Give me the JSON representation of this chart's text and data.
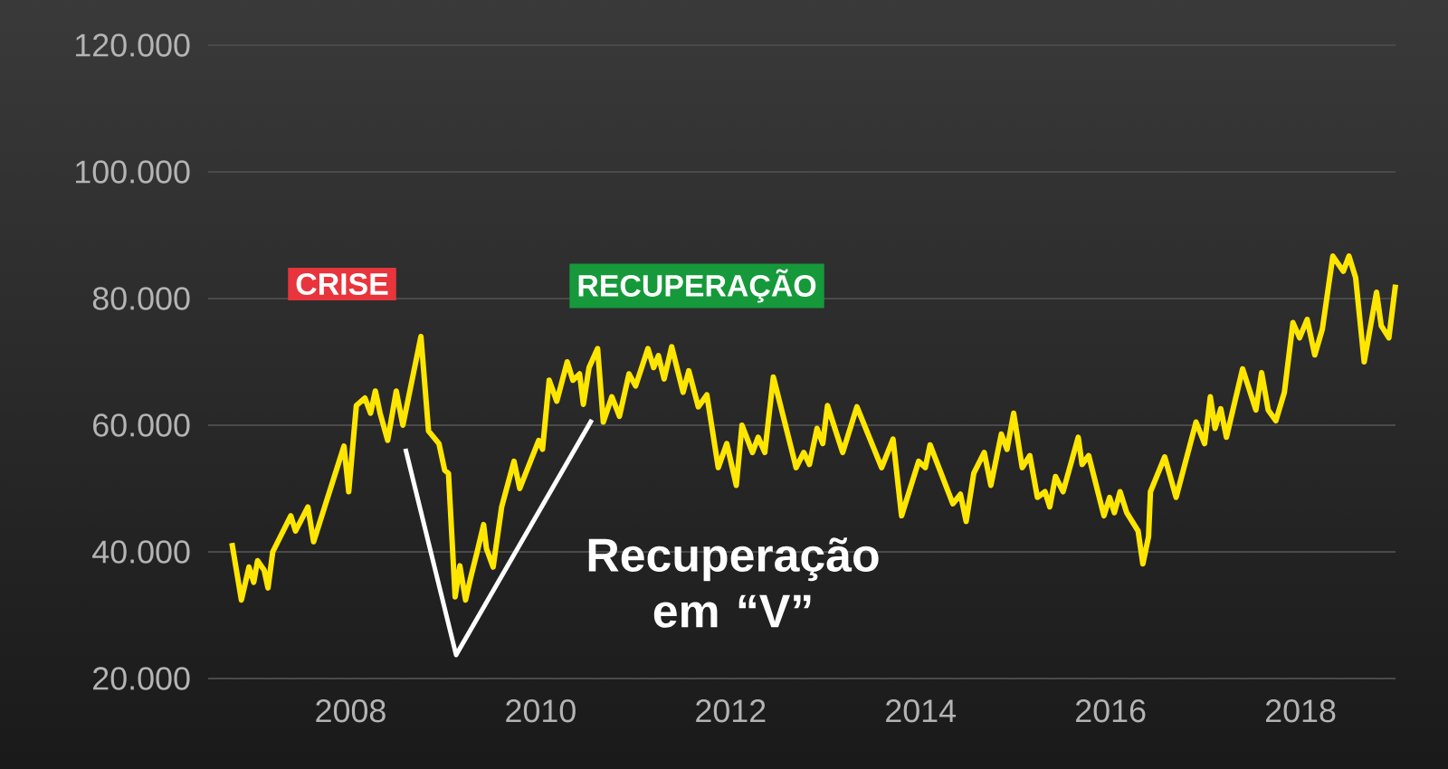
{
  "chart_data": {
    "type": "line",
    "x": [
      2006.75,
      2006.85,
      2006.93,
      2006.98,
      2007.02,
      2007.09,
      2007.13,
      2007.18,
      2007.37,
      2007.42,
      2007.55,
      2007.61,
      2007.93,
      2007.98,
      2008.06,
      2008.15,
      2008.21,
      2008.26,
      2008.31,
      2008.39,
      2008.48,
      2008.55,
      2008.74,
      2008.82,
      2008.93,
      2008.99,
      2009.03,
      2009.1,
      2009.15,
      2009.21,
      2009.26,
      2009.34,
      2009.4,
      2009.43,
      2009.5,
      2009.59,
      2009.72,
      2009.78,
      2009.98,
      2010.02,
      2010.09,
      2010.17,
      2010.28,
      2010.34,
      2010.41,
      2010.45,
      2010.51,
      2010.6,
      2010.66,
      2010.75,
      2010.83,
      2010.93,
      2011.0,
      2011.13,
      2011.19,
      2011.24,
      2011.3,
      2011.38,
      2011.5,
      2011.56,
      2011.66,
      2011.75,
      2011.87,
      2011.96,
      2012.06,
      2012.12,
      2012.23,
      2012.29,
      2012.36,
      2012.45,
      2012.69,
      2012.77,
      2012.83,
      2012.91,
      2012.97,
      2013.02,
      2013.18,
      2013.33,
      2013.59,
      2013.71,
      2013.8,
      2013.98,
      2014.05,
      2014.1,
      2014.34,
      2014.42,
      2014.48,
      2014.56,
      2014.67,
      2014.74,
      2014.85,
      2014.91,
      2014.98,
      2015.07,
      2015.15,
      2015.23,
      2015.31,
      2015.36,
      2015.42,
      2015.5,
      2015.66,
      2015.7,
      2015.77,
      2015.93,
      2015.99,
      2016.04,
      2016.1,
      2016.17,
      2016.29,
      2016.34,
      2016.4,
      2016.42,
      2016.57,
      2016.69,
      2016.9,
      2016.99,
      2017.05,
      2017.1,
      2017.16,
      2017.22,
      2017.39,
      2017.53,
      2017.59,
      2017.66,
      2017.74,
      2017.83,
      2017.92,
      2017.99,
      2018.07,
      2018.15,
      2018.23,
      2018.34,
      2018.45,
      2018.51,
      2018.58,
      2018.67,
      2018.8,
      2018.85,
      2018.93,
      2019.0
    ],
    "series": [
      {
        "color": "#ffe600",
        "values": [
          41400,
          32400,
          37600,
          35200,
          38600,
          37100,
          34300,
          40000,
          45700,
          43300,
          47100,
          41600,
          56700,
          49500,
          63100,
          64300,
          61900,
          65400,
          61900,
          57600,
          65400,
          60000,
          74000,
          59100,
          57100,
          52900,
          52400,
          32900,
          37800,
          32400,
          35700,
          40500,
          44300,
          40500,
          37600,
          47100,
          54300,
          50000,
          57600,
          56200,
          67100,
          63800,
          70000,
          67100,
          68100,
          63300,
          69100,
          72100,
          60500,
          64500,
          61400,
          68100,
          66200,
          72100,
          69100,
          71000,
          67300,
          72400,
          65200,
          68600,
          62900,
          64800,
          53300,
          57100,
          50500,
          60000,
          55700,
          58100,
          55700,
          67600,
          53300,
          55700,
          53800,
          59500,
          57100,
          63100,
          55700,
          62900,
          53300,
          57800,
          45700,
          54300,
          53300,
          56900,
          47600,
          49100,
          44800,
          52400,
          55700,
          50500,
          58600,
          56200,
          61900,
          53300,
          55200,
          48600,
          49500,
          47100,
          51900,
          49500,
          58100,
          53800,
          55200,
          45700,
          48600,
          46200,
          49500,
          46200,
          43300,
          38100,
          42400,
          49500,
          55000,
          48600,
          60500,
          57100,
          64500,
          59500,
          62600,
          58100,
          68900,
          62400,
          68300,
          62400,
          60700,
          65200,
          76200,
          73800,
          76700,
          71100,
          75200,
          86700,
          84300,
          86700,
          83300,
          70000,
          81000,
          75700,
          73800,
          82200
        ]
      }
    ],
    "xlim": [
      2006.5,
      2019.0
    ],
    "ylim": [
      20000,
      120000
    ],
    "xticks": [
      2008,
      2010,
      2012,
      2014,
      2016,
      2018
    ],
    "yticks": [
      {
        "value": 20000,
        "label": "20.000"
      },
      {
        "value": 40000,
        "label": "40.000"
      },
      {
        "value": 60000,
        "label": "60.000"
      },
      {
        "value": 80000,
        "label": "80.000"
      },
      {
        "value": 100000,
        "label": "100.000"
      },
      {
        "value": 120000,
        "label": "120.000"
      }
    ],
    "grid": "y",
    "annotations": [
      "CRISE",
      "RECUPERAÇÃO",
      "Recuperação em “V”"
    ]
  }
}
